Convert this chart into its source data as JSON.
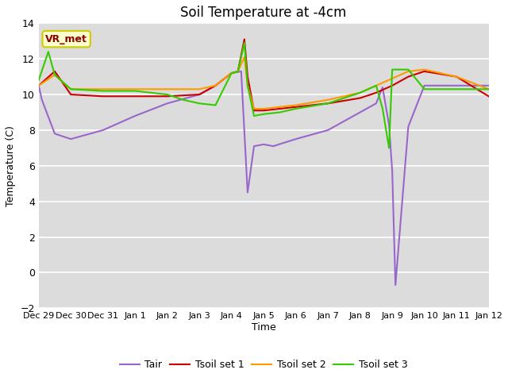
{
  "title": "Soil Temperature at -4cm",
  "xlabel": "Time",
  "ylabel": "Temperature (C)",
  "ylim": [
    -2,
    14
  ],
  "yticks": [
    -2,
    0,
    2,
    4,
    6,
    8,
    10,
    12,
    14
  ],
  "background_color": "#dcdcdc",
  "annotation_text": "VR_met",
  "annotation_box_color": "#ffffcc",
  "annotation_text_color": "#8b0000",
  "annotation_edge_color": "#cccc00",
  "legend_labels": [
    "Tair",
    "Tsoil set 1",
    "Tsoil set 2",
    "Tsoil set 3"
  ],
  "line_colors": [
    "#9966cc",
    "#cc0000",
    "#ff9900",
    "#33cc00"
  ],
  "x_tick_labels": [
    "Dec 29",
    "Dec 30",
    "Dec 31",
    "Jan 1",
    "Jan 2",
    "Jan 3",
    "Jan 4",
    "Jan 5",
    "Jan 6",
    "Jan 7",
    "Jan 8",
    "Jan 9",
    "Jan 10",
    "Jan 11",
    "Jan 12"
  ],
  "tair_x": [
    0,
    0.1,
    0.5,
    1.0,
    2.0,
    3.0,
    4.0,
    5.0,
    5.5,
    6.0,
    6.3,
    6.5,
    6.7,
    7.0,
    7.3,
    8.0,
    9.0,
    10.0,
    10.5,
    10.7,
    10.9,
    11.0,
    11.1,
    11.5,
    12.0,
    13.0,
    14.0
  ],
  "tair_y": [
    10.5,
    9.7,
    7.8,
    7.5,
    8.0,
    8.8,
    9.5,
    10.0,
    10.5,
    11.2,
    11.3,
    4.5,
    7.1,
    7.2,
    7.1,
    7.5,
    8.0,
    9.0,
    9.5,
    10.4,
    8.3,
    5.7,
    -0.7,
    8.2,
    10.5,
    10.5,
    10.5
  ],
  "tsoil1_x": [
    0,
    0.5,
    1.0,
    2.0,
    3.0,
    4.0,
    5.0,
    5.5,
    6.0,
    6.2,
    6.4,
    6.5,
    6.7,
    7.0,
    7.5,
    8.0,
    9.0,
    10.0,
    10.5,
    11.0,
    11.5,
    12.0,
    13.0,
    14.0
  ],
  "tsoil1_y": [
    10.5,
    11.3,
    10.0,
    9.9,
    9.9,
    9.9,
    10.0,
    10.5,
    11.2,
    11.3,
    13.1,
    11.0,
    9.1,
    9.1,
    9.2,
    9.3,
    9.5,
    9.8,
    10.1,
    10.5,
    11.0,
    11.3,
    11.0,
    9.9
  ],
  "tsoil2_x": [
    0,
    0.5,
    1.0,
    2.0,
    3.0,
    4.0,
    5.0,
    5.5,
    6.0,
    6.2,
    6.4,
    6.5,
    6.7,
    7.0,
    7.5,
    8.0,
    9.0,
    10.0,
    10.5,
    11.0,
    11.5,
    12.0,
    13.0,
    14.0
  ],
  "tsoil2_y": [
    10.5,
    11.1,
    10.3,
    10.3,
    10.3,
    10.3,
    10.3,
    10.5,
    11.2,
    11.3,
    12.1,
    10.5,
    9.2,
    9.2,
    9.3,
    9.4,
    9.7,
    10.1,
    10.5,
    10.9,
    11.3,
    11.4,
    11.0,
    10.3
  ],
  "tsoil3_x": [
    0,
    0.3,
    0.5,
    1.0,
    2.0,
    3.0,
    4.0,
    4.5,
    5.0,
    5.5,
    6.0,
    6.2,
    6.4,
    6.5,
    6.7,
    7.0,
    7.5,
    8.0,
    9.0,
    10.0,
    10.5,
    10.7,
    10.9,
    11.0,
    11.5,
    12.0,
    13.0,
    14.0
  ],
  "tsoil3_y": [
    10.8,
    12.4,
    11.1,
    10.3,
    10.2,
    10.2,
    10.0,
    9.7,
    9.5,
    9.4,
    11.2,
    11.3,
    12.9,
    10.5,
    8.8,
    8.9,
    9.0,
    9.2,
    9.5,
    10.1,
    10.5,
    9.2,
    7.0,
    11.4,
    11.4,
    10.3,
    10.3,
    10.3
  ]
}
